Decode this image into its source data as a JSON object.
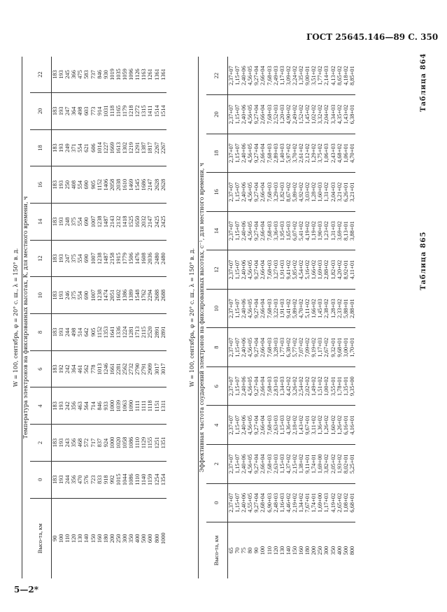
{
  "header": "ГОСТ 25645.146—89 С. 350",
  "footer": "5—2*",
  "tables": [
    {
      "label": "Таблица 864",
      "title": "W = 100, сентябрь, φ = 20° с. ш., λ = 150° в. д.",
      "subtitle": "Температура электронов на фиксированных высотах, К, для местного времени, ч",
      "height_header": "Высо-та, км",
      "hours": [
        "0",
        "2",
        "4",
        "6",
        "8",
        "10",
        "12",
        "14",
        "16",
        "18",
        "20",
        "22"
      ],
      "rows": [
        [
          "90",
          "183",
          "183",
          "183",
          "183",
          "183",
          "183",
          "183",
          "183",
          "183",
          "183",
          "183",
          "183"
        ],
        [
          "100",
          "193",
          "193",
          "193",
          "192",
          "193",
          "193",
          "193",
          "193",
          "193",
          "193",
          "193",
          "193"
        ],
        [
          "110",
          "244",
          "243",
          "242",
          "242",
          "244",
          "246",
          "247",
          "248",
          "250",
          "249",
          "247",
          "245"
        ],
        [
          "120",
          "356",
          "356",
          "356",
          "364",
          "498",
          "375",
          "375",
          "375",
          "408",
          "371",
          "364",
          "366"
        ],
        [
          "130",
          "470",
          "468",
          "463",
          "461",
          "514",
          "554",
          "554",
          "554",
          "554",
          "554",
          "498",
          "475"
        ],
        [
          "140",
          "576",
          "572",
          "564",
          "562",
          "642",
          "690",
          "690",
          "690",
          "690",
          "621",
          "603",
          "583"
        ],
        [
          "150",
          "723",
          "717",
          "714",
          "778",
          "905",
          "1007",
          "1007",
          "1007",
          "905",
          "606",
          "773",
          "737"
        ],
        [
          "160",
          "833",
          "837",
          "846",
          "1013",
          "1152",
          "1238",
          "1238",
          "1238",
          "1152",
          "1014",
          "914",
          "846"
        ],
        [
          "180",
          "918",
          "924",
          "933",
          "1246",
          "1353",
          "1474",
          "1487",
          "1487",
          "1406",
          "1227",
          "1031",
          "930"
        ],
        [
          "200",
          "992",
          "1000",
          "1000",
          "1661",
          "1641",
          "2051",
          "2158",
          "2143",
          "2058",
          "1669",
          "1118",
          "1019"
        ],
        [
          "250",
          "1015",
          "1020",
          "1039",
          "2281",
          "1336",
          "1602",
          "1915",
          "2132",
          "2038",
          "1613",
          "1165",
          "1035"
        ],
        [
          "300",
          "1044",
          "1058",
          "1063",
          "2562",
          "1224",
          "1386",
          "1779",
          "1418",
          "1610",
          "1302",
          "1179",
          "1059"
        ],
        [
          "350",
          "1086",
          "1086",
          "1090",
          "2732",
          "1281",
          "1389",
          "1506",
          "1525",
          "1469",
          "1219",
          "1218",
          "1096"
        ],
        [
          "400",
          "1110",
          "1110",
          "1111",
          "2790",
          "1713",
          "1548",
          "1476",
          "1650",
          "1545",
          "1291",
          "1272",
          "1126"
        ],
        [
          "500",
          "1140",
          "1129",
          "1111",
          "2791",
          "2115",
          "1762",
          "1608",
          "2032",
          "1686",
          "1387",
          "1315",
          "1163"
        ],
        [
          "600",
          "1159",
          "1155",
          "1118",
          "2909",
          "2520",
          "2294",
          "2036",
          "2147",
          "2147",
          "1817",
          "1411",
          "1261"
        ],
        [
          "800",
          "1254",
          "1251",
          "1151",
          "3017",
          "2891",
          "2688",
          "2480",
          "2425",
          "2628",
          "2267",
          "1514",
          "1361"
        ],
        [
          "1000",
          "1354",
          "1351",
          "1311",
          "3017",
          "2891",
          "2688",
          "2480",
          "2425",
          "2628",
          "2267",
          "1514",
          "1361"
        ]
      ]
    },
    {
      "label": "Таблица 865",
      "title": "W = 100, сентябрь, φ = 20° с. ш., λ = 150° в. д.",
      "subtitle": "Эффективная частота соударений электронов на фиксированных высотах, с⁻¹, для местного времени, ч",
      "height_header": "Высо-та, км",
      "hours": [
        "0",
        "2",
        "4",
        "6",
        "8",
        "10",
        "12",
        "14",
        "16",
        "18",
        "20",
        "22"
      ],
      "rows": [
        [
          "65",
          "2,37+07",
          "2,37+07",
          "2,37+07",
          "2,37+07",
          "2,37+07",
          "2,37+07",
          "2,37+07",
          "2,37+07",
          "2,37+07",
          "2,37+07",
          "2,37+07",
          "2,37+07"
        ],
        [
          "70",
          "1,15+07",
          "1,15+07",
          "1,15+07",
          "1,15+07",
          "1,15+07",
          "1,15+07",
          "1,15+07",
          "1,15+07",
          "1,15+07",
          "1,15+07",
          "1,15+07",
          "1,15+07"
        ],
        [
          "75",
          "2,40+06",
          "2,40+06",
          "2,40+06",
          "2,40+06",
          "2,40+06",
          "2,40+06",
          "2,40+06",
          "2,40+06",
          "2,40+06",
          "2,40+06",
          "2,40+06",
          "2,40+06"
        ],
        [
          "80",
          "4,55+05",
          "4,56+05",
          "4,56+05",
          "4,56+05",
          "4,56+05",
          "4,56+05",
          "4,56+05",
          "4,56+05",
          "4,56+05",
          "4,56+05",
          "4,56+05",
          "4,56+05"
        ],
        [
          "90",
          "9,27+04",
          "9,27+04",
          "9,27+04",
          "9,27+04",
          "9,27+04",
          "9,27+04",
          "9,27+04",
          "9,27+04",
          "9,27+04",
          "9,27+04",
          "9,27+04",
          "9,27+04"
        ],
        [
          "100",
          "2,68+04",
          "2,66+04",
          "2,66+04",
          "2,66+04",
          "2,66+04",
          "2,66+04",
          "2,66+04",
          "2,66+04",
          "2,66+04",
          "2,66+04",
          "2,66+04",
          "2,66+04"
        ],
        [
          "110",
          "6,90+03",
          "7,68+03",
          "7,68+03",
          "7,68+03",
          "7,68+03",
          "7,68+03",
          "7,68+03",
          "7,68+03",
          "7,68+03",
          "7,68+03",
          "7,68+03",
          "7,68+03"
        ],
        [
          "120",
          "2,48+03",
          "2,63+03",
          "2,63+03",
          "2,83+03",
          "3,28+03",
          "3,22+03",
          "3,27+03",
          "3,36+03",
          "3,29+03",
          "2,89+03",
          "2,52+03",
          "2,49+03"
        ],
        [
          "130",
          "1,16+03",
          "1,15+03",
          "1,15+03",
          "1,34+03",
          "1,77+03",
          "1,91+03",
          "1,91+03",
          "1,95+03",
          "1,82+03",
          "1,40+03",
          "1,20+03",
          "1,17+03"
        ],
        [
          "140",
          "4,46+02",
          "4,37+02",
          "4,36+02",
          "4,42+02",
          "6,38+02",
          "9,41+02",
          "9,41+02",
          "1,65+03",
          "8,67+02",
          "5,97+02",
          "4,90+02",
          "3,09+02"
        ],
        [
          "150",
          "2,19+02",
          "2,15+02",
          "2,18+02",
          "3,26+02",
          "5,77+02",
          "5,89+02",
          "5,85+02",
          "6,07+02",
          "5,89+02",
          "3,70+02",
          "2,49+02",
          "2,24+02"
        ],
        [
          "160",
          "1,34+02",
          "1,38+02",
          "1,43+02",
          "2,54+02",
          "7,07+02",
          "4,70+02",
          "4,54+02",
          "5,41+02",
          "4,92+02",
          "2,61+02",
          "1,52+02",
          "1,35+02"
        ],
        [
          "180",
          "7,67+01",
          "9,11+01",
          "9,67+01",
          "2,02+02",
          "7,09+02",
          "5,11+02",
          "5,16+02",
          "4,19+02",
          "3,03+02",
          "2,12+02",
          "1,45+02",
          "9,00+01"
        ],
        [
          "200",
          "1,74+01",
          "1,74+01",
          "3,11+02",
          "1,49+02",
          "9,19+02",
          "1,66+02",
          "1,66+02",
          "1,19+02",
          "1,28+02",
          "1,29+02",
          "1,02+02",
          "3,51+02"
        ],
        [
          "250",
          "1,69+00",
          "1,69+00",
          "1,36+02",
          "1,51+02",
          "1,17+03",
          "1,45+03",
          "1,69+03",
          "1,90+03",
          "1,60+03",
          "3,75+02",
          "3,32+02",
          "1,77+02"
        ],
        [
          "300",
          "1,17+03",
          "3,82+02",
          "1,26+02",
          "1,00+02",
          "2,67+02",
          "2,38+02",
          "2,88+02",
          "1,23+02",
          "1,31+02",
          "1,06+03",
          "2,04+02",
          "2,14+03"
        ],
        [
          "350",
          "4,19+02",
          "2,05+02",
          "1,60+02",
          "3,55+01",
          "9,32+01",
          "1,28+03",
          "1,82+03",
          "1,31+03",
          "2,04+03",
          "2,43+03",
          "3,34+03",
          "4,13+02"
        ],
        [
          "400",
          "2,65+02",
          "1,93+02",
          "1,26+02",
          "1,78+01",
          "9,68+01",
          "2,33+02",
          "4,20+02",
          "3,69+02",
          "3,21+02",
          "4,68+02",
          "4,35+02",
          "8,65+02"
        ],
        [
          "500",
          "1,08+02",
          "8,02+01",
          "6,16+01",
          "1,35+01",
          "3,00+01",
          "5,88+01",
          "8,92+01",
          "8,13+01",
          "6,26+01",
          "1,06+01",
          "1,43+02",
          "4,18+02"
        ],
        [
          "800",
          "6,68+01",
          "5,25+01",
          "4,16+01",
          "9,35+00",
          "1,70+01",
          "2,88+01",
          "4,11+01",
          "3,88+01",
          "3,21+01",
          "4,70+01",
          "6,38+01",
          "8,85+01"
        ]
      ]
    }
  ]
}
